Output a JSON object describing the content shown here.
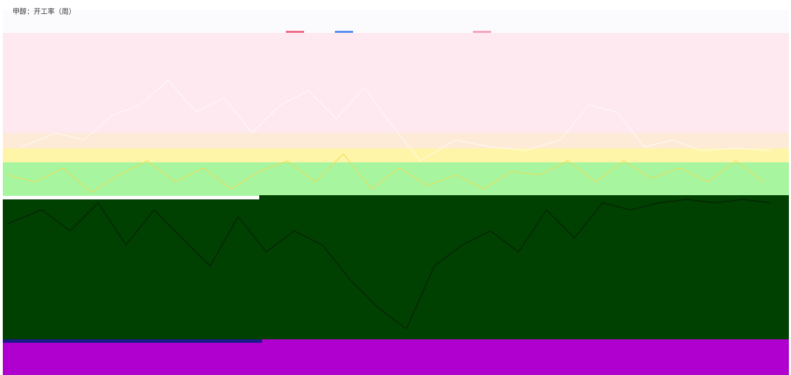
{
  "header": {
    "title": "甲醇：开工率（周）"
  }
}
